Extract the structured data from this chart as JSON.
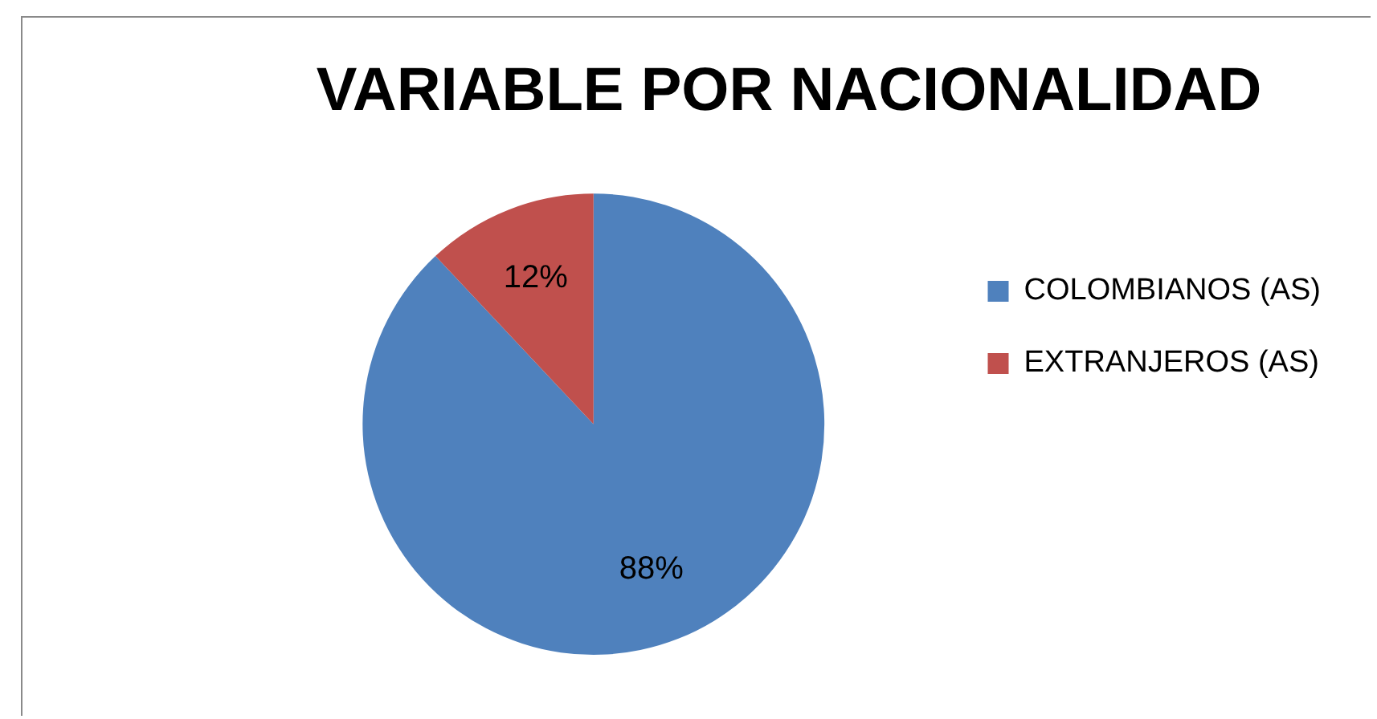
{
  "chart_data": {
    "type": "pie",
    "title": "VARIABLE POR NACIONALIDAD",
    "categories": [
      "COLOMBIANOS (AS)",
      "EXTRANJEROS (AS)"
    ],
    "values": [
      88,
      12
    ],
    "colors": [
      "#4f81bd",
      "#c0504d"
    ],
    "value_labels": [
      "88%",
      "12%"
    ],
    "legend": "right"
  }
}
